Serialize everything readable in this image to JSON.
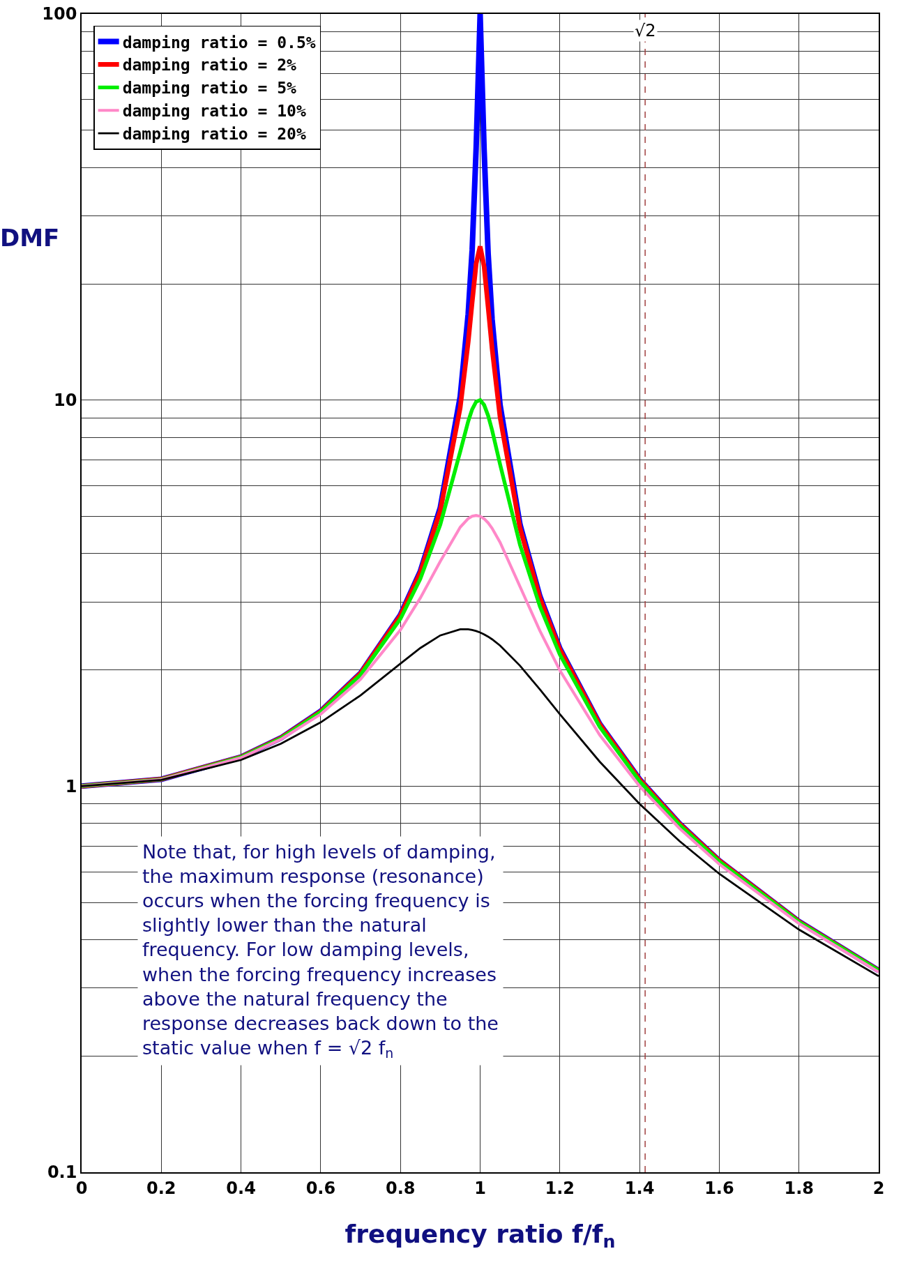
{
  "chart_data": {
    "type": "line",
    "xlabel": "frequency ratio f/f$_{n}$",
    "ylabel": "DMF",
    "x": [
      0,
      0.2,
      0.4,
      0.5,
      0.6,
      0.7,
      0.8,
      0.85,
      0.9,
      0.95,
      0.97,
      0.98,
      0.99,
      1.0,
      1.01,
      1.02,
      1.03,
      1.05,
      1.1,
      1.15,
      1.2,
      1.3,
      1.4,
      1.5,
      1.6,
      1.8,
      2.0
    ],
    "series": [
      {
        "name": "damping ratio = 0.5%",
        "color": "#0000ff",
        "values": [
          1,
          1.042,
          1.19,
          1.333,
          1.563,
          1.961,
          2.778,
          3.604,
          5.263,
          10.21,
          16.7,
          24.5,
          45.0,
          100,
          44.4,
          24.0,
          16.19,
          9.71,
          4.76,
          3.1,
          2.273,
          1.449,
          1.042,
          0.8,
          0.641,
          0.446,
          0.333
        ]
      },
      {
        "name": "damping ratio = 2%",
        "color": "#ff0000",
        "values": [
          1,
          1.042,
          1.19,
          1.332,
          1.561,
          1.958,
          2.767,
          3.577,
          5.171,
          9.556,
          14.14,
          17.95,
          22.56,
          25,
          22.16,
          17.42,
          13.6,
          9.03,
          4.661,
          3.07,
          2.259,
          1.445,
          1.04,
          0.799,
          0.641,
          0.446,
          0.333
        ]
      },
      {
        "name": "damping ratio = 5%",
        "color": "#00ee00",
        "values": [
          1,
          1.041,
          1.189,
          1.33,
          1.556,
          1.943,
          2.712,
          3.446,
          4.757,
          7.346,
          8.804,
          9.461,
          9.903,
          10,
          9.711,
          9.115,
          8.357,
          6.815,
          4.218,
          2.921,
          2.193,
          1.424,
          1.031,
          0.794,
          0.638,
          0.445,
          0.333
        ]
      },
      {
        "name": "damping ratio = 10%",
        "color": "#ff88c8",
        "values": [
          1,
          1.041,
          1.185,
          1.322,
          1.536,
          1.891,
          2.538,
          3.073,
          3.821,
          4.683,
          4.931,
          5.001,
          5.025,
          5,
          4.926,
          4.809,
          4.655,
          4.279,
          3.288,
          2.524,
          1.995,
          1.356,
          1.0,
          0.778,
          0.628,
          0.441,
          0.33
        ]
      },
      {
        "name": "damping ratio = 20%",
        "color": "#000000",
        "values": [
          1,
          1.038,
          1.169,
          1.288,
          1.463,
          1.719,
          2.076,
          2.279,
          2.457,
          2.549,
          2.548,
          2.538,
          2.522,
          2.5,
          2.472,
          2.439,
          2.401,
          2.313,
          2.051,
          1.78,
          1.536,
          1.157,
          0.9,
          0.721,
          0.593,
          0.425,
          0.322
        ]
      }
    ],
    "log": "y",
    "xlim": [
      0,
      2
    ],
    "xticks": [
      0,
      0.2,
      0.4,
      0.6,
      0.8,
      1,
      1.2,
      1.4,
      1.6,
      1.8,
      2
    ],
    "ylim": [
      0.1,
      100
    ],
    "yticks": [
      0.1,
      {
        "value": 0.2,
        "label": null
      },
      {
        "value": 0.3,
        "label": null
      },
      {
        "value": 0.4,
        "label": null
      },
      {
        "value": 0.5,
        "label": null
      },
      {
        "value": 0.6,
        "label": null
      },
      {
        "value": 0.7,
        "label": null
      },
      {
        "value": 0.8,
        "label": null
      },
      {
        "value": 0.9,
        "label": null
      },
      1,
      {
        "value": 2,
        "label": null
      },
      {
        "value": 3,
        "label": null
      },
      {
        "value": 4,
        "label": null
      },
      {
        "value": 5,
        "label": null
      },
      {
        "value": 6,
        "label": null
      },
      {
        "value": 7,
        "label": null
      },
      {
        "value": 8,
        "label": null
      },
      {
        "value": 9,
        "label": null
      },
      10,
      {
        "value": 20,
        "label": null
      },
      {
        "value": 30,
        "label": null
      },
      {
        "value": 40,
        "label": null
      },
      {
        "value": 50,
        "label": null
      },
      {
        "value": 60,
        "label": null
      },
      {
        "value": 70,
        "label": null
      },
      {
        "value": 80,
        "label": null
      },
      {
        "value": 90,
        "label": null
      },
      100
    ],
    "grid": true,
    "legend": "top left",
    "line_style": "solid",
    "marker": "none",
    "ref_lines": [
      {
        "axis": "x",
        "value": 1.414,
        "label": "√2",
        "color": "#a04040",
        "line_style": "dashed"
      }
    ],
    "annotations": [
      "Note that, for high levels of damping, the maximum response (resonance) occurs when the forcing frequency is slightly lower than the natural frequency. For low damping levels, when the forcing frequency increases above the natural frequency the response decreases back down to the static value when f = √2 f$_{n}$"
    ]
  }
}
